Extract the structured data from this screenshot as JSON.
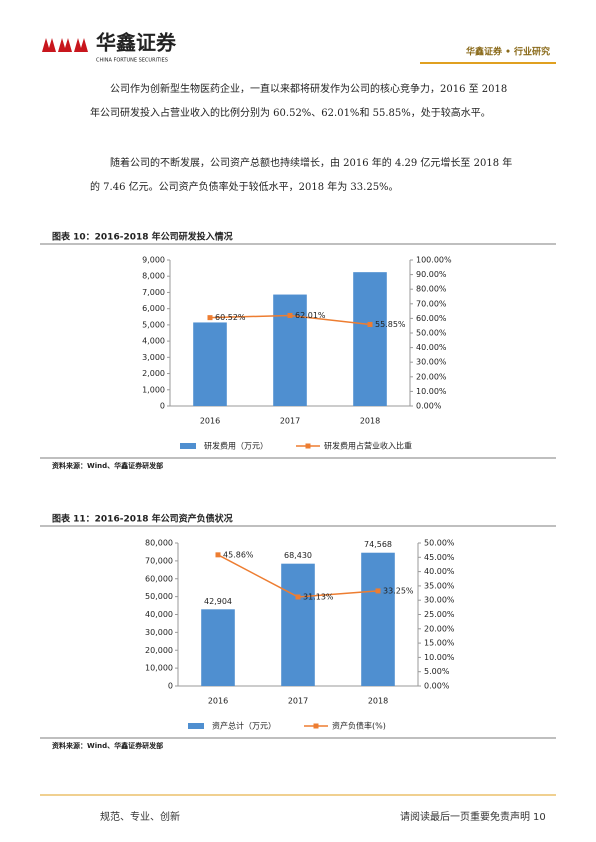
{
  "header": {
    "logo": "华鑫证券",
    "logo_en": "CHINA FORTUNE SECURITIES",
    "section": "华鑫证券 • 行业研究"
  },
  "paragraphs": [
    "公司作为创新型生物医药企业，一直以来都将研发作为公司的核心竞争力，2016 至 2018 年公司研发投入占营业收入的比例分别为 60.52%、62.01%和 55.85%，处于较高水平。",
    "随着公司的不断发展，公司资产总额也持续增长，由 2016 年的 4.29 亿元增长至 2018 年的 7.46 亿元。公司资产负债率处于较低水平，2018 年为 33.25%。"
  ],
  "chart_data": [
    {
      "type": "bar",
      "title": "图表 10：2016-2018 年公司研发投入情况",
      "source": "资料来源：Wind、华鑫证券研发部",
      "categories": [
        "2016",
        "2017",
        "2018"
      ],
      "series": [
        {
          "name": "研发费用（万元）",
          "color": "#4f8fd0",
          "type": "bar",
          "values": [
            5150,
            6870,
            8250
          ]
        },
        {
          "name": "研发费用占营业收入比重",
          "color": "#ed7d31",
          "type": "line",
          "axis": "y2",
          "values": [
            60.52,
            62.01,
            55.85
          ],
          "value_labels": [
            "60.52%",
            "62.01%",
            "55.85%"
          ]
        }
      ],
      "ylim": [
        0,
        9000
      ],
      "yticks": [
        0,
        {
          "value": 1000,
          "label": "1,000"
        },
        {
          "value": 2000,
          "label": "2,000"
        },
        {
          "value": 3000,
          "label": "3,000"
        },
        {
          "value": 4000,
          "label": "4,000"
        },
        {
          "value": 5000,
          "label": "5,000"
        },
        {
          "value": 6000,
          "label": "6,000"
        },
        {
          "value": 7000,
          "label": "7,000"
        },
        {
          "value": 8000,
          "label": "8,000"
        },
        {
          "value": 9000,
          "label": "9,000"
        }
      ],
      "y2lim": [
        0,
        100
      ],
      "y2ticks": [
        {
          "value": 0,
          "label": "0.00%"
        },
        {
          "value": 10,
          "label": "10.00%"
        },
        {
          "value": 20,
          "label": "20.00%"
        },
        {
          "value": 30,
          "label": "30.00%"
        },
        {
          "value": 40,
          "label": "40.00%"
        },
        {
          "value": 50,
          "label": "50.00%"
        },
        {
          "value": 60,
          "label": "60.00%"
        },
        {
          "value": 70,
          "label": "70.00%"
        },
        {
          "value": 80,
          "label": "80.00%"
        },
        {
          "value": 90,
          "label": "90.00%"
        },
        {
          "value": 100,
          "label": "100.00%"
        }
      ],
      "legend": "bottom"
    },
    {
      "type": "bar",
      "title": "图表 11：2016-2018 年公司资产负债状况",
      "source": "资料来源：Wind、华鑫证券研发部",
      "categories": [
        "2016",
        "2017",
        "2018"
      ],
      "series": [
        {
          "name": "资产总计（万元）",
          "color": "#4f8fd0",
          "type": "bar",
          "values": [
            42904,
            68430,
            74568
          ],
          "value_labels": [
            "42,904",
            "68,430",
            "74,568"
          ]
        },
        {
          "name": "资产负债率(%)",
          "color": "#ed7d31",
          "type": "line",
          "axis": "y2",
          "values": [
            45.86,
            31.13,
            33.25
          ],
          "value_labels": [
            "45.86%",
            "31.13%",
            "33.25%"
          ]
        }
      ],
      "ylim": [
        0,
        80000
      ],
      "yticks": [
        0,
        {
          "value": 10000,
          "label": "10,000"
        },
        {
          "value": 20000,
          "label": "20,000"
        },
        {
          "value": 30000,
          "label": "30,000"
        },
        {
          "value": 40000,
          "label": "40,000"
        },
        {
          "value": 50000,
          "label": "50,000"
        },
        {
          "value": 60000,
          "label": "60,000"
        },
        {
          "value": 70000,
          "label": "70,000"
        },
        {
          "value": 80000,
          "label": "80,000"
        }
      ],
      "y2lim": [
        0,
        50
      ],
      "y2ticks": [
        {
          "value": 0,
          "label": "0.00%"
        },
        {
          "value": 5,
          "label": "5.00%"
        },
        {
          "value": 10,
          "label": "10.00%"
        },
        {
          "value": 15,
          "label": "15.00%"
        },
        {
          "value": 20,
          "label": "20.00%"
        },
        {
          "value": 25,
          "label": "25.00%"
        },
        {
          "value": 30,
          "label": "30.00%"
        },
        {
          "value": 35,
          "label": "35.00%"
        },
        {
          "value": 40,
          "label": "40.00%"
        },
        {
          "value": 45,
          "label": "45.00%"
        },
        {
          "value": 50,
          "label": "50.00%"
        }
      ],
      "legend": "bottom"
    }
  ],
  "footer": {
    "motto": "规范、专业、创新",
    "notice": "请阅读最后一页重要免责声明",
    "page": "10"
  }
}
